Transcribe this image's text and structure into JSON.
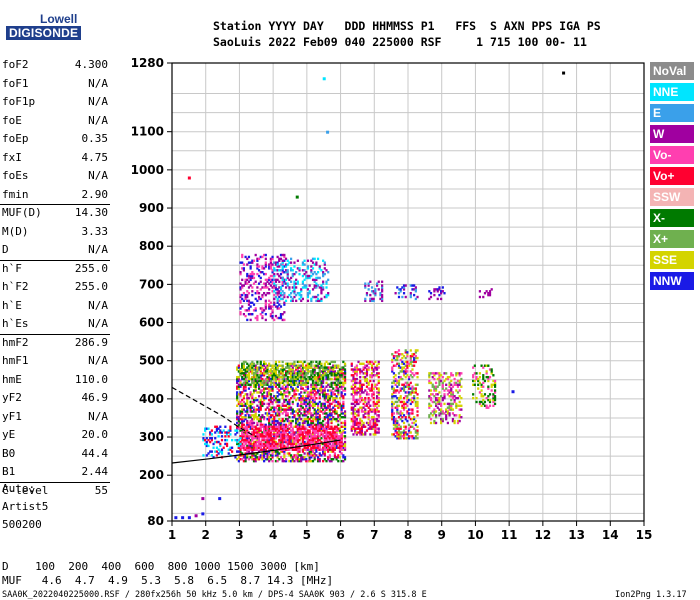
{
  "logo": {
    "line1": "Lowell",
    "line2": "DIGISONDE"
  },
  "header": {
    "line1": "Station YYYY DAY   DDD HHMMSS P1   FFS  S AXN PPS IGA PS",
    "line2": "SaoLuis 2022 Feb09 040 225000 RSF     1 715 100 00- 11"
  },
  "params": [
    {
      "k": "foF2",
      "v": "4.300"
    },
    {
      "k": "foF1",
      "v": "N/A"
    },
    {
      "k": "foF1p",
      "v": "N/A"
    },
    {
      "k": "foE",
      "v": "N/A"
    },
    {
      "k": "foEp",
      "v": "0.35"
    },
    {
      "k": "fxI",
      "v": "4.75"
    },
    {
      "k": "foEs",
      "v": "N/A"
    },
    {
      "k": "fmin",
      "v": "2.90"
    },
    {
      "k": "MUF(D)",
      "v": "14.30"
    },
    {
      "k": "M(D)",
      "v": "3.33"
    },
    {
      "k": "D",
      "v": "N/A"
    },
    {
      "k": "h`F",
      "v": "255.0"
    },
    {
      "k": "h`F2",
      "v": "255.0"
    },
    {
      "k": "h`E",
      "v": "N/A"
    },
    {
      "k": "h`Es",
      "v": "N/A"
    },
    {
      "k": "hmF2",
      "v": "286.9"
    },
    {
      "k": "hmF1",
      "v": "N/A"
    },
    {
      "k": "hmE",
      "v": "110.0"
    },
    {
      "k": "yF2",
      "v": "46.9"
    },
    {
      "k": "yF1",
      "v": "N/A"
    },
    {
      "k": "yE",
      "v": "20.0"
    },
    {
      "k": "B0",
      "v": "44.4"
    },
    {
      "k": "B1",
      "v": "2.44"
    },
    {
      "k": "C-level",
      "v": "55"
    }
  ],
  "notes": [
    "Auto:",
    "Artist5",
    "500200"
  ],
  "legend": [
    {
      "label": "NoVal",
      "color": "#8c8c8c"
    },
    {
      "label": "NNE",
      "color": "#00e5ff"
    },
    {
      "label": "E",
      "color": "#3aa0ea"
    },
    {
      "label": "W",
      "color": "#a000a0"
    },
    {
      "label": "Vo-",
      "color": "#ff3fb0"
    },
    {
      "label": "Vo+",
      "color": "#ff0030"
    },
    {
      "label": "SSW",
      "color": "#f4b4b4"
    },
    {
      "label": "X-",
      "color": "#007a00"
    },
    {
      "label": "X+",
      "color": "#6fb04f"
    },
    {
      "label": "SSE",
      "color": "#d4d400"
    },
    {
      "label": "NNW",
      "color": "#1a1ae6"
    }
  ],
  "bottom": {
    "d_line": "D    100  200  400  600  800 1000 1500 3000 [km]",
    "muf_line": "MUF   4.6  4.7  4.9  5.3  5.8  6.5  8.7 14.3 [MHz]",
    "footer_left": "SAA0K_2022040225000.RSF / 280fx256h 50 kHz 5.0 km / DPS-4 SAA0K 903 / 2.6 S 315.8 E",
    "footer_right": "Ion2Png 1.3.17"
  },
  "chart_data": {
    "type": "scatter",
    "x_range": [
      1,
      15
    ],
    "y_range": [
      80,
      1280
    ],
    "x_ticks": [
      1,
      2,
      3,
      4,
      5,
      6,
      7,
      8,
      9,
      10,
      11,
      12,
      13,
      14,
      15
    ],
    "y_ticks": [
      80,
      200,
      300,
      400,
      500,
      600,
      700,
      800,
      900,
      1000,
      1100,
      1280
    ],
    "grid": true,
    "clusters": [
      {
        "name": "F-trace main",
        "x": [
          2.9,
          6.1
        ],
        "y": [
          240,
          490
        ],
        "colors": [
          "#ff0030",
          "#a000a0",
          "#1a1ae6",
          "#d4d400",
          "#007a00",
          "#ff3fb0"
        ],
        "density": 0.55
      },
      {
        "name": "F-trace lower band",
        "x": [
          3.0,
          6.0
        ],
        "y": [
          270,
          330
        ],
        "colors": [
          "#ff0030",
          "#ff3fb0"
        ],
        "density": 0.6
      },
      {
        "name": "top band",
        "x": [
          3.0,
          6.1
        ],
        "y": [
          440,
          500
        ],
        "colors": [
          "#d4d400",
          "#6fb04f",
          "#007a00"
        ],
        "density": 0.45
      },
      {
        "name": "second hop",
        "x": [
          3.0,
          4.3
        ],
        "y": [
          610,
          780
        ],
        "colors": [
          "#a000a0",
          "#1a1ae6",
          "#ff3fb0"
        ],
        "density": 0.3
      },
      {
        "name": "second hop slant",
        "x": [
          4.0,
          5.6
        ],
        "y": [
          660,
          770
        ],
        "colors": [
          "#3aa0ea",
          "#00e5ff",
          "#a000a0"
        ],
        "density": 0.3
      },
      {
        "name": "cluster 7",
        "x": [
          6.3,
          7.1
        ],
        "y": [
          310,
          500
        ],
        "colors": [
          "#ff0030",
          "#a000a0",
          "#ff3fb0",
          "#d4d400"
        ],
        "density": 0.5
      },
      {
        "name": "cluster 8",
        "x": [
          7.5,
          8.3
        ],
        "y": [
          300,
          530
        ],
        "colors": [
          "#ff0030",
          "#d4d400",
          "#6fb04f",
          "#ff3fb0",
          "#1a1ae6"
        ],
        "density": 0.45
      },
      {
        "name": "cluster 9",
        "x": [
          8.6,
          9.6
        ],
        "y": [
          340,
          470
        ],
        "colors": [
          "#a000a0",
          "#ff3fb0",
          "#6fb04f",
          "#d4d400"
        ],
        "density": 0.4
      },
      {
        "name": "cluster 10",
        "x": [
          9.9,
          10.6
        ],
        "y": [
          380,
          490
        ],
        "colors": [
          "#d4d400",
          "#ff3fb0",
          "#007a00"
        ],
        "density": 0.3
      },
      {
        "name": "band 680 a",
        "x": [
          6.7,
          7.2
        ],
        "y": [
          660,
          710
        ],
        "colors": [
          "#a000a0",
          "#3aa0ea"
        ],
        "density": 0.35
      },
      {
        "name": "band 680 b",
        "x": [
          7.6,
          8.3
        ],
        "y": [
          665,
          700
        ],
        "colors": [
          "#a000a0",
          "#3aa0ea",
          "#1a1ae6"
        ],
        "density": 0.3
      },
      {
        "name": "band 680 c",
        "x": [
          8.6,
          9.1
        ],
        "y": [
          665,
          695
        ],
        "colors": [
          "#a000a0",
          "#1a1ae6"
        ],
        "density": 0.3
      },
      {
        "name": "band 680 d",
        "x": [
          10.1,
          10.5
        ],
        "y": [
          670,
          690
        ],
        "colors": [
          "#a000a0"
        ],
        "density": 0.25
      },
      {
        "name": "low freq blob",
        "x": [
          1.9,
          3.0
        ],
        "y": [
          250,
          330
        ],
        "colors": [
          "#1a1ae6",
          "#ff0030",
          "#00e5ff"
        ],
        "density": 0.25
      }
    ],
    "points": [
      {
        "x": 1.5,
        "y": 980,
        "color": "#ff0030"
      },
      {
        "x": 5.5,
        "y": 1240,
        "color": "#00e5ff"
      },
      {
        "x": 5.6,
        "y": 1100,
        "color": "#3aa0ea"
      },
      {
        "x": 12.6,
        "y": 1255,
        "color": "#000000"
      },
      {
        "x": 4.7,
        "y": 930,
        "color": "#007a00"
      },
      {
        "x": 2.4,
        "y": 140,
        "color": "#1a1ae6"
      },
      {
        "x": 1.1,
        "y": 90,
        "color": "#1a1ae6"
      },
      {
        "x": 1.3,
        "y": 90,
        "color": "#1a1ae6"
      },
      {
        "x": 1.5,
        "y": 90,
        "color": "#1a1ae6"
      },
      {
        "x": 1.7,
        "y": 95,
        "color": "#a000a0"
      },
      {
        "x": 1.9,
        "y": 100,
        "color": "#1a1ae6"
      },
      {
        "x": 1.9,
        "y": 140,
        "color": "#a000a0"
      },
      {
        "x": 11.1,
        "y": 420,
        "color": "#1a1ae6"
      }
    ],
    "curves": [
      {
        "style": "dashed",
        "x": [
          1.0,
          1.5,
          2.0,
          2.5,
          3.0,
          3.5
        ],
        "y": [
          430,
          405,
          380,
          355,
          325,
          300
        ]
      },
      {
        "style": "solid",
        "x": [
          1.0,
          2.0,
          3.0,
          4.0,
          5.0,
          6.0
        ],
        "y": [
          232,
          242,
          253,
          265,
          278,
          292
        ]
      }
    ]
  }
}
